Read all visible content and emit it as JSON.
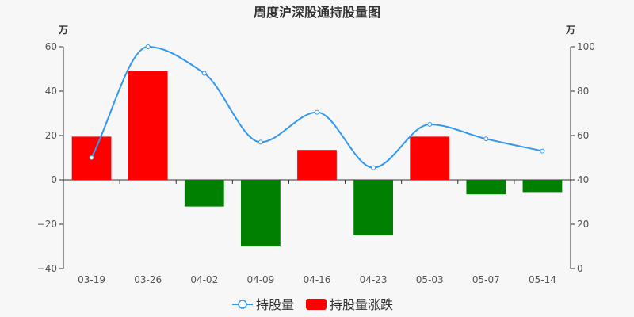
{
  "chart_data": {
    "type": "bar",
    "title": "周度沪深股通持股量图",
    "categories": [
      "03-19",
      "03-26",
      "04-02",
      "04-09",
      "04-16",
      "04-23",
      "05-03",
      "05-07",
      "05-14"
    ],
    "left_axis": {
      "unit": "万",
      "ylim": [
        -40,
        60
      ],
      "ticks": [
        -40,
        -20,
        0,
        20,
        40,
        60
      ],
      "tick_labels": [
        "−40",
        "−20",
        "0",
        "20",
        "40",
        "60"
      ]
    },
    "right_axis": {
      "unit": "万",
      "ylim": [
        0,
        100
      ],
      "ticks": [
        0,
        20,
        40,
        60,
        80,
        100
      ],
      "tick_labels": [
        "0",
        "20",
        "40",
        "60",
        "80",
        "100"
      ]
    },
    "series": [
      {
        "name": "持股量涨跌",
        "type": "bar",
        "axis": "left",
        "values": [
          19.5,
          49.0,
          -12.0,
          -30.0,
          13.5,
          -25.0,
          19.5,
          -6.5,
          -5.5
        ],
        "positive_color": "#ff0000",
        "negative_color": "#008000"
      },
      {
        "name": "持股量",
        "type": "line",
        "axis": "right",
        "smooth": true,
        "values": [
          50,
          100,
          88,
          57,
          70.5,
          45.5,
          65,
          58.5,
          53
        ],
        "color": "#3398ef"
      }
    ],
    "legend": {
      "position": "bottom-center",
      "items": [
        {
          "label": "持股量",
          "icon": "line-circle-icon",
          "color": "#3398ef"
        },
        {
          "label": "持股量涨跌",
          "icon": "rounded-rect-icon",
          "color": "#ff0000"
        }
      ]
    },
    "grid": false
  }
}
